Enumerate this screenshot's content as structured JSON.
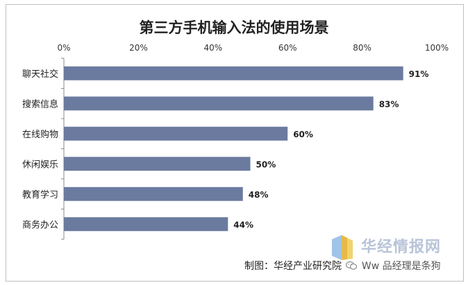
{
  "chart_data": {
    "type": "bar",
    "orientation": "horizontal",
    "title": "第三方手机输入法的使用场景",
    "categories": [
      "聊天社交",
      "搜索信息",
      "在线购物",
      "休闲娱乐",
      "教育学习",
      "商务办公"
    ],
    "values": [
      91,
      83,
      60,
      50,
      48,
      44
    ],
    "value_labels": [
      "91%",
      "83%",
      "60%",
      "50%",
      "48%",
      "44%"
    ],
    "x_ticks": [
      "0%",
      "20%",
      "40%",
      "60%",
      "80%",
      "100%"
    ],
    "xlim": [
      0,
      100
    ],
    "x_axis_position": "top",
    "grid": false,
    "bar_color": "#6b7a9f"
  },
  "watermark": {
    "brand": "华经情报网",
    "source": "制图：华经产业研究院",
    "overlay": "Ww 品经理是条狗"
  },
  "colors": {
    "bar": "#6b7a9f",
    "watermark": "#b9c4d8"
  }
}
